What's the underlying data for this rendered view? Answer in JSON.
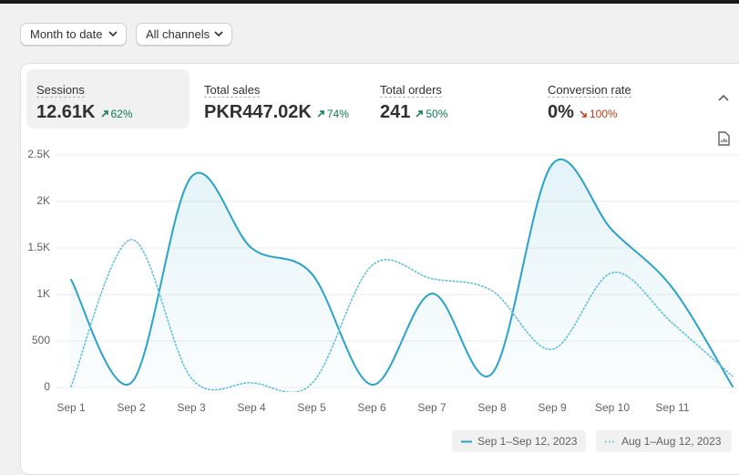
{
  "filters": [
    "Month to date",
    "All channels"
  ],
  "metrics": [
    {
      "label": "Sessions",
      "value": "12.61K",
      "change": "62%",
      "direction": "up"
    },
    {
      "label": "Total sales",
      "value": "PKR447.02K",
      "change": "74%",
      "direction": "up"
    },
    {
      "label": "Total orders",
      "value": "241",
      "change": "50%",
      "direction": "up"
    },
    {
      "label": "Conversion rate",
      "value": "0%",
      "change": "100%",
      "direction": "down"
    }
  ],
  "chart_data": {
    "type": "line",
    "categories": [
      "Sep 1",
      "Sep 2",
      "Sep 3",
      "Sep 4",
      "Sep 5",
      "Sep 6",
      "Sep 7",
      "Sep 8",
      "Sep 9",
      "Sep 10",
      "Sep 11",
      null
    ],
    "series": [
      {
        "name": "Sep 1–Sep 12, 2023",
        "color": "#2aa3c8",
        "style": "solid",
        "values": [
          1160,
          50,
          2265,
          1500,
          1225,
          30,
          1010,
          150,
          2400,
          1690,
          1070,
          10
        ]
      },
      {
        "name": "Aug 1–Aug 12, 2023",
        "color": "#62c0dc",
        "style": "dotted",
        "values": [
          10,
          1590,
          100,
          50,
          40,
          1310,
          1170,
          1040,
          410,
          1235,
          690,
          120
        ]
      }
    ],
    "ylim": [
      0,
      2500
    ],
    "yticks": [
      0,
      500,
      {
        "value": 1000,
        "label": "1K"
      },
      {
        "value": 1500,
        "label": "1.5K"
      },
      {
        "value": 2000,
        "label": "2K"
      },
      {
        "value": 2500,
        "label": "2.5K"
      }
    ],
    "grid": true
  }
}
